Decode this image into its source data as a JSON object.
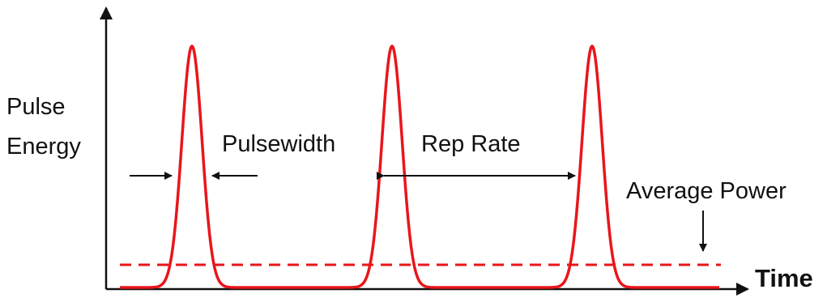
{
  "labels": {
    "y_axis_line1": "Pulse",
    "y_axis_line2": "Energy",
    "x_axis": "Time",
    "pulsewidth": "Pulsewidth",
    "rep_rate": "Rep Rate",
    "average_power": "Average Power"
  },
  "colors": {
    "pulse": "#e8161b",
    "average": "#e8161b",
    "axis": "#111111"
  }
}
